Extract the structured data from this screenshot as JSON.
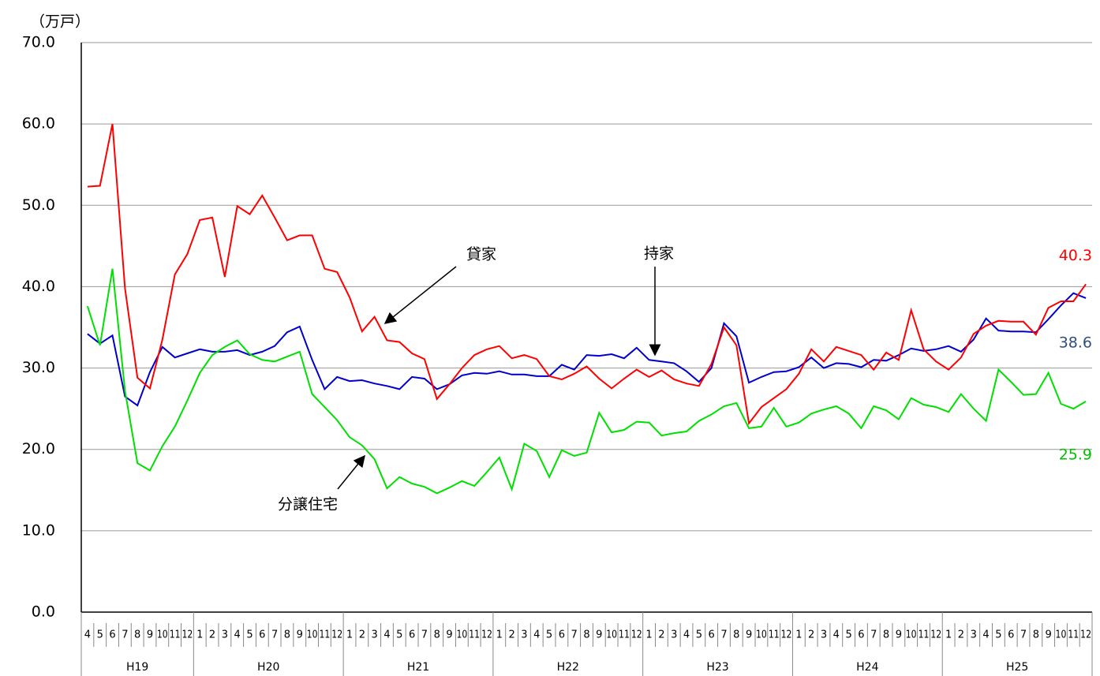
{
  "chart_data": {
    "type": "line",
    "y_label": "（万戸）",
    "categories": [
      "4",
      "5",
      "6",
      "7",
      "8",
      "9",
      "10",
      "11",
      "12",
      "1",
      "2",
      "3",
      "4",
      "5",
      "6",
      "7",
      "8",
      "9",
      "10",
      "11",
      "12",
      "1",
      "2",
      "3",
      "4",
      "5",
      "6",
      "7",
      "8",
      "9",
      "10",
      "11",
      "12",
      "1",
      "2",
      "3",
      "4",
      "5",
      "6",
      "7",
      "8",
      "9",
      "10",
      "11",
      "12",
      "1",
      "2",
      "3",
      "4",
      "5",
      "6",
      "7",
      "8",
      "9",
      "10",
      "11",
      "12",
      "1",
      "2",
      "3",
      "4",
      "5",
      "6",
      "7",
      "8",
      "9",
      "10",
      "11",
      "12",
      "1",
      "2",
      "3",
      "4",
      "5",
      "6",
      "7",
      "8",
      "9",
      "10",
      "11",
      "12"
    ],
    "years": [
      "H19",
      "H20",
      "H21",
      "H22",
      "H23",
      "H24",
      "H25"
    ],
    "series": [
      {
        "name": "持家",
        "color": "#0000cc",
        "value_label_color": "#2f4f7f",
        "values": [
          34.2,
          33.0,
          34.0,
          26.5,
          25.4,
          29.5,
          32.6,
          31.3,
          31.8,
          32.3,
          32.0,
          32.0,
          32.2,
          31.6,
          32.0,
          32.7,
          34.4,
          35.1,
          31.0,
          27.4,
          28.9,
          28.4,
          28.5,
          28.1,
          27.8,
          27.4,
          28.9,
          28.7,
          27.4,
          28.0,
          29.1,
          29.4,
          29.3,
          29.6,
          29.2,
          29.2,
          29.0,
          29.0,
          30.4,
          29.8,
          31.6,
          31.5,
          31.7,
          31.2,
          32.5,
          31.0,
          30.8,
          30.6,
          29.6,
          28.3,
          30.0,
          35.5,
          33.9,
          28.2,
          28.9,
          29.5,
          29.6,
          30.1,
          31.3,
          30.0,
          30.6,
          30.5,
          30.1,
          31.0,
          30.9,
          31.6,
          32.4,
          32.1,
          32.3,
          32.7,
          32.0,
          33.5,
          36.1,
          34.6,
          34.5,
          34.5,
          34.4,
          36.0,
          37.7,
          39.2,
          38.6
        ]
      },
      {
        "name": "貸家",
        "color": "#ff0000",
        "value_label_color": "#ff0000",
        "values": [
          52.3,
          52.4,
          60.0,
          39.8,
          28.8,
          27.5,
          33.5,
          41.5,
          44.0,
          48.2,
          48.5,
          41.2,
          49.9,
          48.9,
          51.2,
          48.5,
          45.7,
          46.3,
          46.3,
          42.2,
          41.8,
          38.7,
          34.5,
          36.3,
          33.4,
          33.2,
          31.8,
          31.1,
          26.2,
          28.0,
          30.0,
          31.6,
          32.3,
          32.7,
          31.2,
          31.6,
          31.1,
          29.0,
          28.6,
          29.3,
          30.2,
          28.7,
          27.5,
          28.7,
          29.8,
          28.9,
          29.7,
          28.6,
          28.1,
          27.8,
          30.5,
          35.0,
          32.8,
          23.2,
          25.2,
          26.3,
          27.4,
          29.3,
          32.3,
          30.8,
          32.6,
          32.1,
          31.6,
          29.8,
          31.9,
          31.0,
          37.1,
          32.3,
          30.8,
          29.8,
          31.3,
          34.2,
          35.2,
          35.8,
          35.7,
          35.7,
          34.1,
          37.4,
          38.2,
          38.2,
          40.3
        ]
      },
      {
        "name": "分譲住宅",
        "color": "#00e000",
        "value_label_color": "#00c000",
        "values": [
          37.6,
          32.8,
          42.2,
          27.2,
          18.3,
          17.4,
          20.4,
          22.8,
          26.0,
          29.4,
          31.6,
          32.6,
          33.4,
          31.7,
          31.0,
          30.8,
          31.4,
          32.0,
          26.8,
          25.2,
          23.6,
          21.5,
          20.5,
          18.8,
          15.2,
          16.6,
          15.8,
          15.4,
          14.6,
          15.3,
          16.1,
          15.5,
          17.2,
          19.0,
          15.1,
          20.7,
          19.8,
          16.6,
          19.9,
          19.2,
          19.6,
          24.5,
          22.1,
          22.4,
          23.4,
          23.3,
          21.7,
          22.0,
          22.2,
          23.5,
          24.3,
          25.3,
          25.7,
          22.6,
          22.8,
          25.1,
          22.8,
          23.3,
          24.4,
          24.9,
          25.3,
          24.4,
          22.6,
          25.3,
          24.8,
          23.7,
          26.3,
          25.5,
          25.2,
          24.6,
          26.8,
          25.0,
          23.5,
          29.8,
          28.3,
          26.7,
          26.8,
          29.4,
          25.6,
          25.0,
          25.9
        ]
      }
    ],
    "ylim": [
      0,
      70
    ],
    "yticks": [
      {
        "value": 0,
        "label": "0.0"
      },
      {
        "value": 10,
        "label": "10.0"
      },
      {
        "value": 20,
        "label": "20.0"
      },
      {
        "value": 30,
        "label": "30.0"
      },
      {
        "value": 40,
        "label": "40.0"
      },
      {
        "value": 50,
        "label": "50.0"
      },
      {
        "value": 60,
        "label": "60.0"
      },
      {
        "value": 70,
        "label": "70.0"
      }
    ],
    "grid": true
  }
}
